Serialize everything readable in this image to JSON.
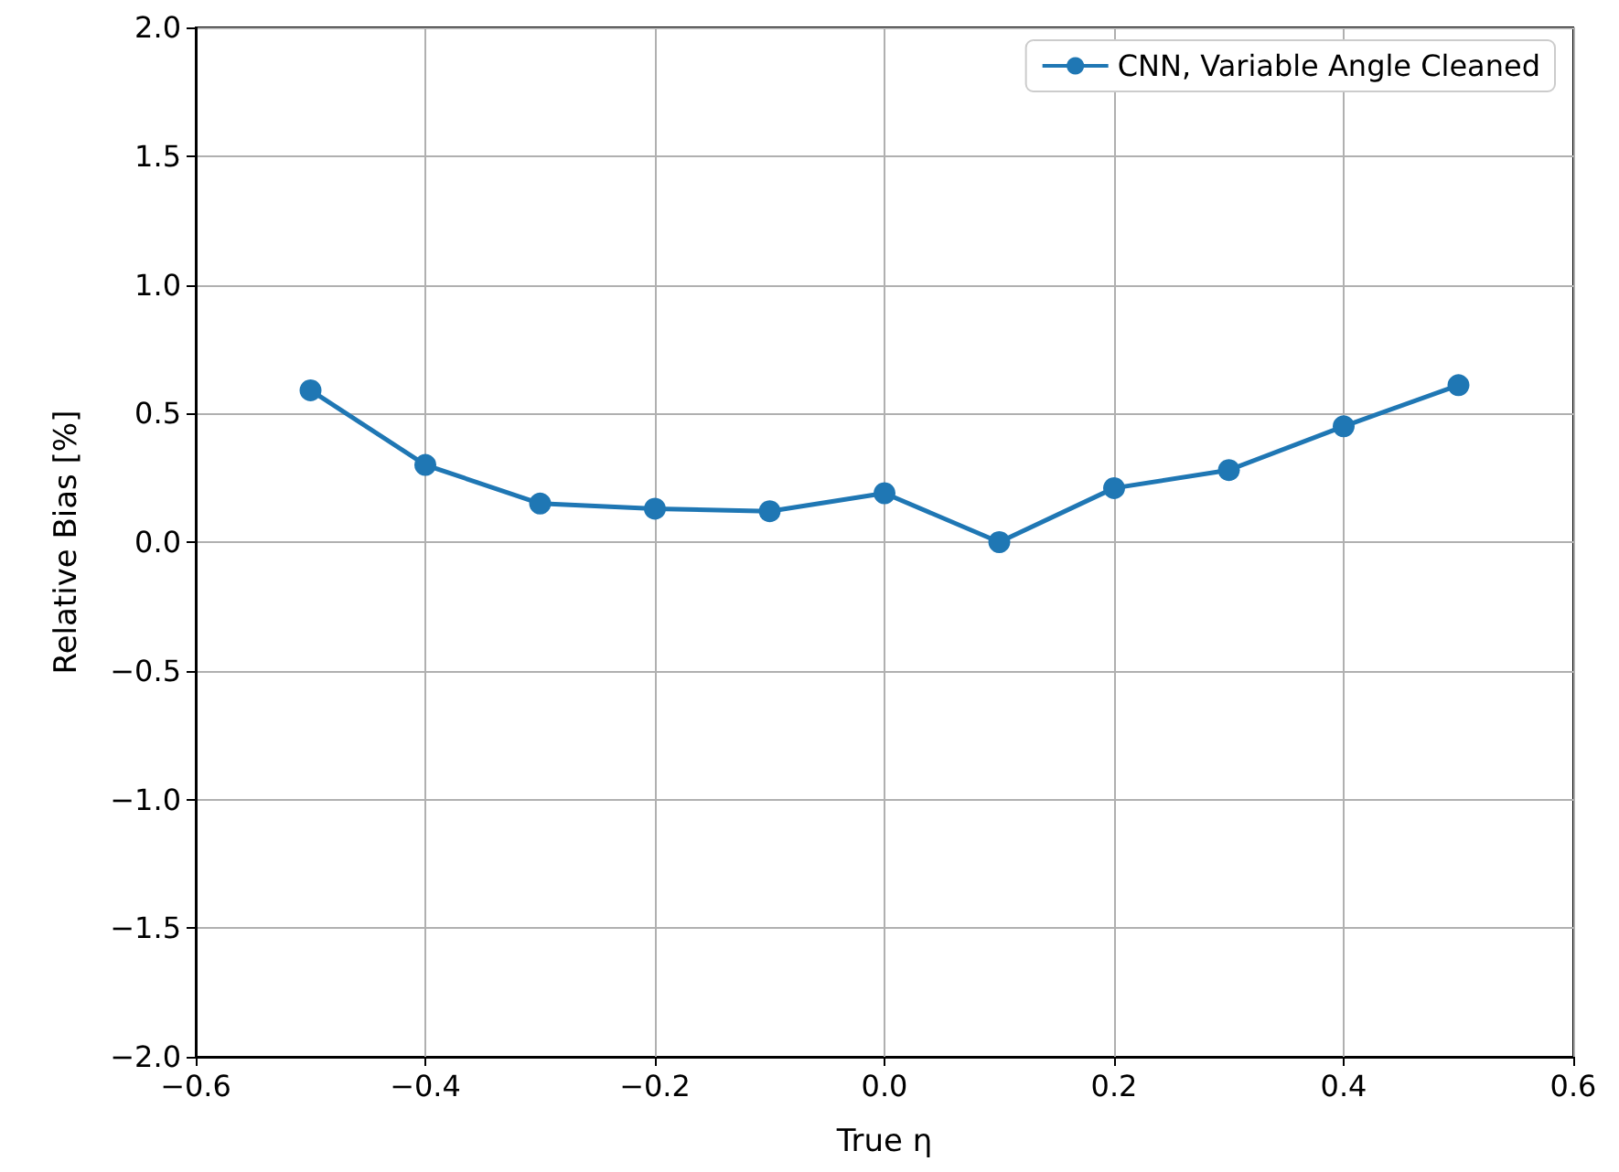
{
  "chart_data": {
    "type": "line",
    "xlabel": "True η",
    "ylabel": "Relative Bias [%]",
    "x": [
      -0.5,
      -0.4,
      -0.3,
      -0.2,
      -0.1,
      0.0,
      0.1,
      0.2,
      0.3,
      0.4,
      0.5
    ],
    "series": [
      {
        "name": "CNN, Variable Angle Cleaned",
        "color": "#1f77b4",
        "values": [
          0.59,
          0.3,
          0.15,
          0.13,
          0.12,
          0.19,
          0.0,
          0.21,
          0.28,
          0.45,
          0.61
        ]
      }
    ],
    "xlim": [
      -0.6,
      0.6
    ],
    "xticks": [
      {
        "value": -0.6,
        "label": "−0.6"
      },
      {
        "value": -0.4,
        "label": "−0.4"
      },
      {
        "value": -0.2,
        "label": "−0.2"
      },
      {
        "value": 0,
        "label": "0.0"
      },
      {
        "value": 0.2,
        "label": "0.2"
      },
      {
        "value": 0.4,
        "label": "0.4"
      },
      {
        "value": 0.6,
        "label": "0.6"
      }
    ],
    "ylim": [
      -2.0,
      2.0
    ],
    "yticks": [
      {
        "value": -2,
        "label": "−2.0"
      },
      {
        "value": -1.5,
        "label": "−1.5"
      },
      {
        "value": -1,
        "label": "−1.0"
      },
      {
        "value": -0.5,
        "label": "−0.5"
      },
      {
        "value": 0,
        "label": "0.0"
      },
      {
        "value": 0.5,
        "label": "0.5"
      },
      {
        "value": 1,
        "label": "1.0"
      },
      {
        "value": 1.5,
        "label": "1.5"
      },
      {
        "value": 2,
        "label": "2.0"
      }
    ],
    "grid": true,
    "legend": "top right",
    "marker": "circle",
    "line_style": "solid"
  }
}
